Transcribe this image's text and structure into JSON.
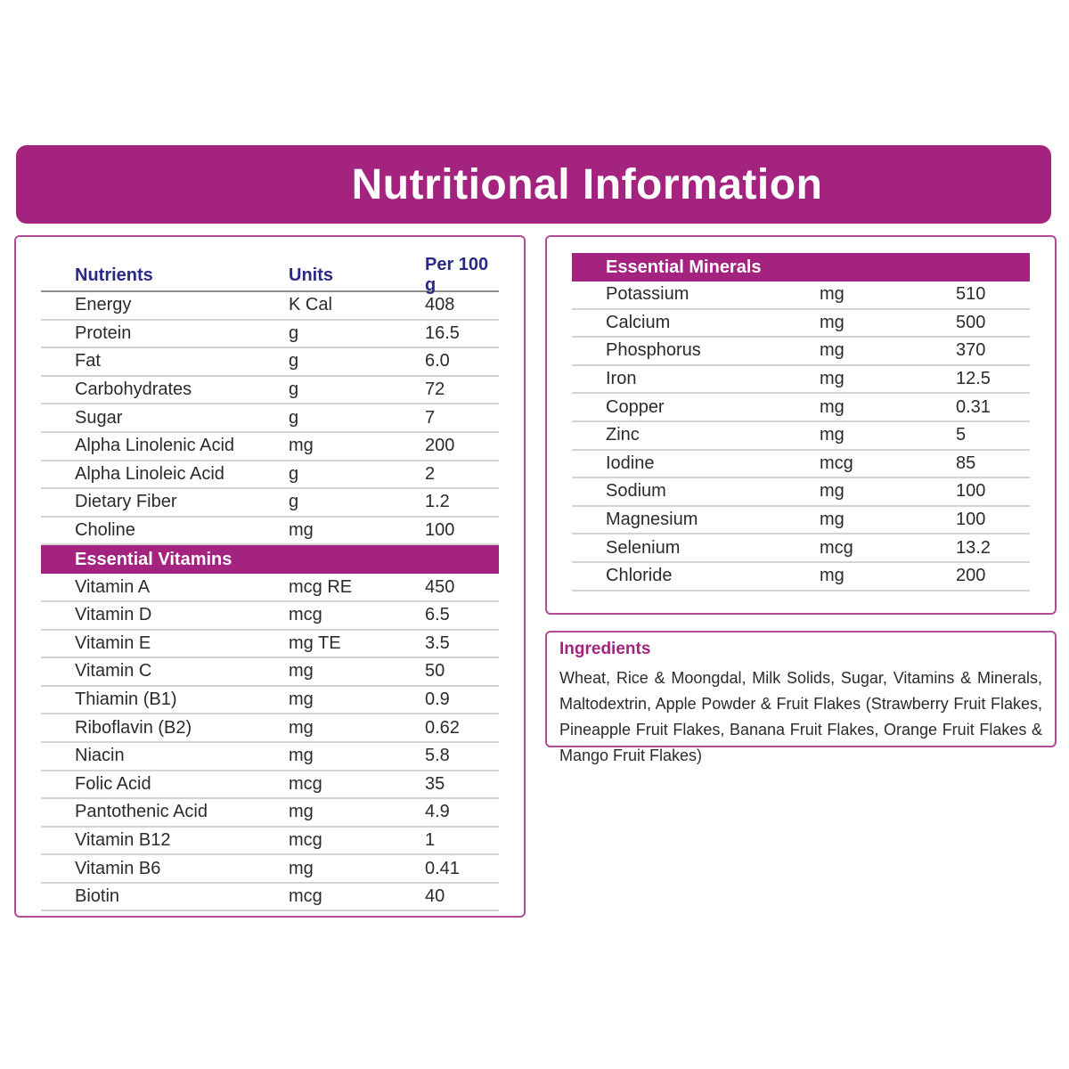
{
  "title": "Nutritional Information",
  "nutrients": {
    "headers": [
      "Nutrients",
      "Units",
      "Per 100 g"
    ],
    "rows": [
      [
        "Energy",
        "K Cal",
        "408"
      ],
      [
        "Protein",
        "g",
        "16.5"
      ],
      [
        "Fat",
        "g",
        "6.0"
      ],
      [
        "Carbohydrates",
        "g",
        "72"
      ],
      [
        "Sugar",
        "g",
        "7"
      ],
      [
        "Alpha Linolenic Acid",
        "mg",
        "200"
      ],
      [
        "Alpha Linoleic Acid",
        "g",
        "2"
      ],
      [
        "Dietary Fiber",
        "g",
        "1.2"
      ],
      [
        "Choline",
        "mg",
        "100"
      ]
    ]
  },
  "vitamins": {
    "title": "Essential Vitamins",
    "rows": [
      [
        "Vitamin A",
        "mcg RE",
        "450"
      ],
      [
        "Vitamin D",
        "mcg",
        "6.5"
      ],
      [
        "Vitamin E",
        "mg TE",
        "3.5"
      ],
      [
        "Vitamin C",
        "mg",
        "50"
      ],
      [
        "Thiamin (B1)",
        "mg",
        "0.9"
      ],
      [
        "Riboflavin (B2)",
        "mg",
        "0.62"
      ],
      [
        "Niacin",
        "mg",
        "5.8"
      ],
      [
        "Folic Acid",
        "mcg",
        "35"
      ],
      [
        "Pantothenic Acid",
        "mg",
        "4.9"
      ],
      [
        "Vitamin B12",
        "mcg",
        "1"
      ],
      [
        "Vitamin B6",
        "mg",
        "0.41"
      ],
      [
        "Biotin",
        "mcg",
        "40"
      ]
    ]
  },
  "minerals": {
    "title": "Essential Minerals",
    "rows": [
      [
        "Potassium",
        "mg",
        "510"
      ],
      [
        "Calcium",
        "mg",
        "500"
      ],
      [
        "Phosphorus",
        "mg",
        "370"
      ],
      [
        "Iron",
        "mg",
        "12.5"
      ],
      [
        "Copper",
        "mg",
        "0.31"
      ],
      [
        "Zinc",
        "mg",
        "5"
      ],
      [
        "Iodine",
        "mcg",
        "85"
      ],
      [
        "Sodium",
        "mg",
        "100"
      ],
      [
        "Magnesium",
        "mg",
        "100"
      ],
      [
        "Selenium",
        "mcg",
        "13.2"
      ],
      [
        "Chloride",
        "mg",
        "200"
      ]
    ]
  },
  "ingredients": {
    "title": "Ingredients",
    "text": "Wheat, Rice & Moongdal, Milk Solids, Sugar, Vitamins & Minerals, Maltodextrin, Apple Powder & Fruit Flakes (Strawberry Fruit Flakes, Pineapple Fruit Flakes, Banana Fruit Flakes, Orange Fruit Flakes & Mango Fruit Flakes)"
  },
  "colors": {
    "accent": "#a3237f",
    "header_text": "#2a2a86"
  }
}
